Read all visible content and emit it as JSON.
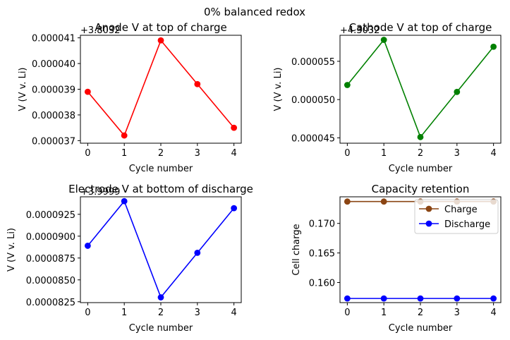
{
  "suptitle": "0% balanced redox",
  "chart_data": [
    {
      "type": "line",
      "title": "Anode V at top of charge",
      "xlabel": "Cycle number",
      "ylabel": "V (V v. Li)",
      "offset_label": "+3.8032",
      "x": [
        0,
        1,
        2,
        3,
        4
      ],
      "xlim": [
        -0.2,
        4.2
      ],
      "ylim": [
        3.69e-05,
        4.11e-05
      ],
      "xticks": [
        "0",
        "1",
        "2",
        "3",
        "4"
      ],
      "yticks": [
        {
          "value": 3.7e-05,
          "label": "0.000037"
        },
        {
          "value": 3.8e-05,
          "label": "0.000038"
        },
        {
          "value": 3.9e-05,
          "label": "0.000039"
        },
        {
          "value": 4e-05,
          "label": "0.000040"
        },
        {
          "value": 4.1e-05,
          "label": "0.000041"
        }
      ],
      "series": [
        {
          "color": "#ff0000",
          "values": [
            3.89e-05,
            3.72e-05,
            4.09e-05,
            3.92e-05,
            3.75e-05
          ]
        }
      ],
      "legend": null
    },
    {
      "type": "line",
      "title": "Cathode V at top of charge",
      "xlabel": "Cycle number",
      "ylabel": "V (V v. Li)",
      "offset_label": "+4.3032",
      "x": [
        0,
        1,
        2,
        3,
        4
      ],
      "xlim": [
        -0.2,
        4.2
      ],
      "ylim": [
        4.43e-05,
        5.84e-05
      ],
      "xticks": [
        "0",
        "1",
        "2",
        "3",
        "4"
      ],
      "yticks": [
        {
          "value": 4.5e-05,
          "label": "0.000045"
        },
        {
          "value": 5e-05,
          "label": "0.000050"
        },
        {
          "value": 5.5e-05,
          "label": "0.000055"
        }
      ],
      "series": [
        {
          "color": "#008000",
          "values": [
            5.19e-05,
            5.78e-05,
            4.51e-05,
            5.1e-05,
            5.69e-05
          ]
        }
      ],
      "legend": null
    },
    {
      "type": "line",
      "title": "Electrode V at bottom of discharge",
      "xlabel": "Cycle number",
      "ylabel": "V (V v. Li)",
      "offset_label": "+3.9999",
      "x": [
        0,
        1,
        2,
        3,
        4
      ],
      "xlim": [
        -0.2,
        4.2
      ],
      "ylim": [
        8.24e-05,
        9.45e-05
      ],
      "xticks": [
        "0",
        "1",
        "2",
        "3",
        "4"
      ],
      "yticks": [
        {
          "value": 8.25e-05,
          "label": "0.0000825"
        },
        {
          "value": 8.5e-05,
          "label": "0.0000850"
        },
        {
          "value": 8.75e-05,
          "label": "0.0000875"
        },
        {
          "value": 9e-05,
          "label": "0.0000900"
        },
        {
          "value": 9.25e-05,
          "label": "0.0000925"
        }
      ],
      "series": [
        {
          "color": "#0000ff",
          "values": [
            8.89e-05,
            9.4e-05,
            8.3e-05,
            8.81e-05,
            9.32e-05
          ]
        }
      ],
      "legend": null
    },
    {
      "type": "line",
      "title": "Capacity retention",
      "xlabel": "Cycle number",
      "ylabel": "Cell charge",
      "offset_label": "",
      "x": [
        0,
        1,
        2,
        3,
        4
      ],
      "xlim": [
        -0.2,
        4.2
      ],
      "ylim": [
        0.1566,
        0.1745
      ],
      "xticks": [
        "0",
        "1",
        "2",
        "3",
        "4"
      ],
      "yticks": [
        {
          "value": 0.16,
          "label": "0.160"
        },
        {
          "value": 0.165,
          "label": "0.165"
        },
        {
          "value": 0.17,
          "label": "0.170"
        }
      ],
      "series": [
        {
          "name": "Charge",
          "color": "#8b4513",
          "values": [
            0.1737,
            0.1737,
            0.1737,
            0.1737,
            0.1737
          ]
        },
        {
          "name": "Discharge",
          "color": "#0000ff",
          "values": [
            0.1573,
            0.1573,
            0.1573,
            0.1573,
            0.1573
          ]
        }
      ],
      "legend": "top-right"
    }
  ]
}
